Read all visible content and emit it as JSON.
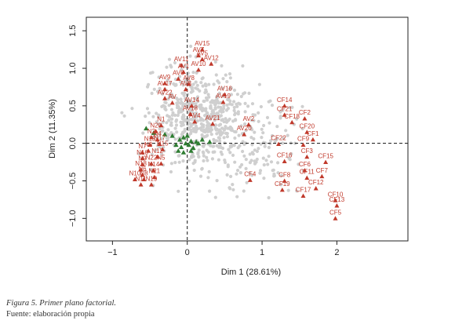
{
  "chart_data": {
    "type": "scatter",
    "xlabel": "Dim 1 (28.61%)",
    "ylabel": "Dim 2 (11.35%)",
    "xlim": [
      -1.35,
      2.95
    ],
    "ylim": [
      -1.3,
      1.68
    ],
    "x_ticks": [
      -1,
      0,
      1,
      2
    ],
    "y_ticks": [
      -1.0,
      -0.5,
      0.0,
      0.5,
      1.0,
      1.5
    ],
    "x_tick_labels": [
      "−1",
      "0",
      "1",
      "2"
    ],
    "y_tick_labels": [
      "−1.0",
      "−0.5",
      "0.0",
      "0.5",
      "1.0",
      "1.5"
    ],
    "reference_lines": [
      {
        "axis": "x",
        "value": 0,
        "style": "dashed"
      },
      {
        "axis": "y",
        "value": 0,
        "style": "dashed"
      }
    ],
    "colors": {
      "labeled": "#c0392b",
      "green": "#2e7d32",
      "background": "#cfcfcf"
    },
    "labeled_points": [
      {
        "label": "AV15",
        "x": 0.2,
        "y": 1.25
      },
      {
        "label": "AV7",
        "x": 0.15,
        "y": 1.17
      },
      {
        "label": "AV5",
        "x": 0.2,
        "y": 1.12
      },
      {
        "label": "AV12",
        "x": 0.32,
        "y": 1.06
      },
      {
        "label": "AV11",
        "x": -0.08,
        "y": 1.04
      },
      {
        "label": "AV10",
        "x": 0.15,
        "y": 0.98
      },
      {
        "label": "AV1",
        "x": -0.05,
        "y": 0.95
      },
      {
        "label": "AV6",
        "x": -0.12,
        "y": 0.86
      },
      {
        "label": "AV8",
        "x": 0.02,
        "y": 0.79
      },
      {
        "label": "AV9",
        "x": -0.3,
        "y": 0.8
      },
      {
        "label": "AV3",
        "x": -0.02,
        "y": 0.72
      },
      {
        "label": "AV17",
        "x": -0.3,
        "y": 0.72
      },
      {
        "label": "AV22",
        "x": -0.3,
        "y": 0.6
      },
      {
        "label": "AV",
        "x": -0.2,
        "y": 0.54
      },
      {
        "label": "AV16",
        "x": 0.5,
        "y": 0.65
      },
      {
        "label": "AV19",
        "x": 0.48,
        "y": 0.55
      },
      {
        "label": "AV14",
        "x": 0.06,
        "y": 0.5
      },
      {
        "label": "AV18",
        "x": 0.04,
        "y": 0.39
      },
      {
        "label": "AV4",
        "x": 0.1,
        "y": 0.29
      },
      {
        "label": "AV21",
        "x": 0.34,
        "y": 0.26
      },
      {
        "label": "AV2",
        "x": 0.82,
        "y": 0.25
      },
      {
        "label": "AV20",
        "x": 0.76,
        "y": 0.12
      },
      {
        "label": "CF14",
        "x": 1.3,
        "y": 0.5
      },
      {
        "label": "CF21",
        "x": 1.3,
        "y": 0.38
      },
      {
        "label": "CF2",
        "x": 1.57,
        "y": 0.33
      },
      {
        "label": "CF18",
        "x": 1.4,
        "y": 0.28
      },
      {
        "label": "CF20",
        "x": 1.6,
        "y": 0.15
      },
      {
        "label": "CF1",
        "x": 1.68,
        "y": 0.05
      },
      {
        "label": "CF22",
        "x": 1.22,
        "y": -0.01
      },
      {
        "label": "CF9",
        "x": 1.55,
        "y": -0.02
      },
      {
        "label": "CF3",
        "x": 1.6,
        "y": -0.18
      },
      {
        "label": "CF15",
        "x": 1.85,
        "y": -0.25
      },
      {
        "label": "CF16",
        "x": 1.3,
        "y": -0.24
      },
      {
        "label": "CF6",
        "x": 1.57,
        "y": -0.36
      },
      {
        "label": "CF11",
        "x": 1.6,
        "y": -0.46
      },
      {
        "label": "CF7",
        "x": 1.8,
        "y": -0.44
      },
      {
        "label": "CF4",
        "x": 0.84,
        "y": -0.49
      },
      {
        "label": "CF8",
        "x": 1.3,
        "y": -0.5
      },
      {
        "label": "CF12",
        "x": 1.72,
        "y": -0.6
      },
      {
        "label": "CF19",
        "x": 1.27,
        "y": -0.62
      },
      {
        "label": "CF17",
        "x": 1.55,
        "y": -0.7
      },
      {
        "label": "CF10",
        "x": 1.98,
        "y": -0.76
      },
      {
        "label": "CF13",
        "x": 2.0,
        "y": -0.83
      },
      {
        "label": "CF5",
        "x": 1.98,
        "y": -1.0
      },
      {
        "label": "N1",
        "x": -0.35,
        "y": 0.24
      },
      {
        "label": "N20",
        "x": -0.42,
        "y": 0.16
      },
      {
        "label": "N2",
        "x": -0.48,
        "y": 0.08
      },
      {
        "label": "N4",
        "x": -0.4,
        "y": 0.05
      },
      {
        "label": "N13",
        "x": -0.5,
        "y": -0.02
      },
      {
        "label": "N17",
        "x": -0.37,
        "y": -0.01
      },
      {
        "label": "N3",
        "x": -0.52,
        "y": -0.1
      },
      {
        "label": "N15",
        "x": -0.33,
        "y": -0.08
      },
      {
        "label": "N7",
        "x": -0.6,
        "y": -0.12
      },
      {
        "label": "N12",
        "x": -0.4,
        "y": -0.18
      },
      {
        "label": "N16",
        "x": -0.6,
        "y": -0.2
      },
      {
        "label": "N9",
        "x": -0.6,
        "y": -0.28
      },
      {
        "label": "N22",
        "x": -0.48,
        "y": -0.27
      },
      {
        "label": "N5",
        "x": -0.35,
        "y": -0.27
      },
      {
        "label": "N18",
        "x": -0.62,
        "y": -0.35
      },
      {
        "label": "N14",
        "x": -0.45,
        "y": -0.36
      },
      {
        "label": "N6",
        "x": -0.6,
        "y": -0.42
      },
      {
        "label": "N10",
        "x": -0.7,
        "y": -0.48
      },
      {
        "label": "N8",
        "x": -0.58,
        "y": -0.48
      },
      {
        "label": "N21",
        "x": -0.44,
        "y": -0.45
      },
      {
        "label": "N11",
        "x": -0.62,
        "y": -0.55
      },
      {
        "label": "N19",
        "x": -0.48,
        "y": -0.55
      }
    ],
    "green_points": [
      [
        -0.55,
        0.2
      ],
      [
        -0.45,
        0.14
      ],
      [
        -0.3,
        0.12
      ],
      [
        -0.2,
        0.1
      ],
      [
        -0.1,
        0.05
      ],
      [
        -0.05,
        0.08
      ],
      [
        0.0,
        0.1
      ],
      [
        0.05,
        0.03
      ],
      [
        0.12,
        0.02
      ],
      [
        0.2,
        0.05
      ],
      [
        0.3,
        0.02
      ],
      [
        -0.15,
        -0.02
      ],
      [
        -0.08,
        -0.05
      ],
      [
        0.02,
        -0.02
      ],
      [
        0.08,
        -0.06
      ],
      [
        -0.02,
        0.0
      ],
      [
        0.15,
        0.0
      ],
      [
        -0.12,
        -0.1
      ],
      [
        0.05,
        -0.1
      ],
      [
        -0.05,
        -0.12
      ]
    ],
    "background_cloud": {
      "center": [
        0.15,
        0.35
      ],
      "count": 700
    }
  },
  "caption": {
    "title": "Figura 5. Primer plano factorial.",
    "source": "Fuente: elaboración propia"
  }
}
